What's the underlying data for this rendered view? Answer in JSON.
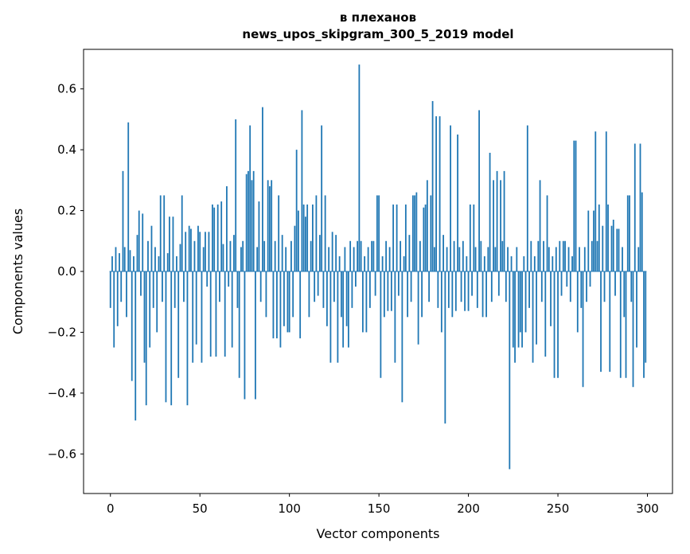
{
  "chart_data": {
    "type": "bar",
    "title_lines": [
      "в плеханов",
      "news_upos_skipgram_300_5_2019 model"
    ],
    "xlabel": "Vector components",
    "ylabel": "Components values",
    "xlim": [
      -15,
      314
    ],
    "ylim": [
      -0.73,
      0.73
    ],
    "grid": false,
    "legend": "none",
    "bar_color": "#1f77b4",
    "x_ticks": [
      0,
      50,
      100,
      150,
      200,
      250,
      300
    ],
    "x_tick_labels": [
      "0",
      "50",
      "100",
      "150",
      "200",
      "250",
      "300"
    ],
    "y_ticks": [
      -0.6,
      -0.4,
      -0.2,
      0.0,
      0.2,
      0.4,
      0.6
    ],
    "y_tick_labels": [
      "−0.6",
      "−0.4",
      "−0.2",
      "0.0",
      "0.2",
      "0.4",
      "0.6"
    ],
    "values": [
      -0.12,
      0.05,
      -0.25,
      0.08,
      -0.18,
      0.06,
      -0.1,
      0.33,
      0.08,
      -0.15,
      0.49,
      0.07,
      -0.36,
      0.05,
      -0.49,
      0.12,
      0.2,
      -0.08,
      0.19,
      -0.3,
      -0.44,
      0.1,
      -0.25,
      0.15,
      -0.12,
      0.08,
      -0.2,
      0.05,
      0.25,
      -0.1,
      0.25,
      -0.43,
      0.06,
      0.18,
      -0.44,
      0.18,
      -0.12,
      0.05,
      -0.35,
      0.09,
      0.25,
      -0.1,
      0.13,
      -0.44,
      0.15,
      0.14,
      -0.3,
      0.1,
      -0.24,
      0.15,
      0.13,
      -0.3,
      0.08,
      0.13,
      -0.05,
      0.13,
      -0.28,
      0.22,
      0.21,
      -0.28,
      0.22,
      -0.1,
      0.23,
      0.09,
      -0.28,
      0.28,
      -0.05,
      0.1,
      -0.25,
      0.12,
      0.5,
      -0.12,
      -0.35,
      0.08,
      0.1,
      -0.42,
      0.32,
      0.33,
      0.48,
      0.3,
      0.33,
      -0.42,
      0.08,
      0.23,
      -0.1,
      0.54,
      0.1,
      -0.15,
      0.3,
      0.28,
      0.3,
      -0.22,
      0.1,
      -0.22,
      0.25,
      -0.25,
      0.12,
      -0.18,
      0.08,
      -0.2,
      -0.2,
      0.1,
      -0.15,
      0.15,
      0.4,
      0.2,
      -0.22,
      0.53,
      0.22,
      0.18,
      0.22,
      -0.15,
      0.1,
      0.22,
      -0.1,
      0.25,
      -0.08,
      0.12,
      0.48,
      -0.12,
      0.25,
      -0.18,
      0.08,
      -0.3,
      0.13,
      -0.1,
      0.12,
      -0.3,
      0.05,
      -0.15,
      -0.25,
      0.08,
      -0.18,
      -0.25,
      0.1,
      -0.12,
      0.08,
      -0.05,
      0.1,
      0.68,
      0.1,
      -0.2,
      0.05,
      -0.2,
      0.08,
      -0.12,
      0.1,
      0.1,
      -0.08,
      0.25,
      0.25,
      -0.35,
      0.05,
      -0.15,
      0.1,
      -0.13,
      0.08,
      -0.13,
      0.22,
      -0.3,
      0.22,
      -0.08,
      0.1,
      -0.43,
      0.05,
      0.22,
      -0.15,
      0.12,
      -0.1,
      0.25,
      0.25,
      0.26,
      -0.24,
      0.1,
      -0.15,
      0.21,
      0.22,
      0.3,
      -0.1,
      0.25,
      0.56,
      0.08,
      0.51,
      -0.12,
      0.51,
      -0.2,
      0.12,
      -0.5,
      0.08,
      -0.12,
      0.48,
      -0.15,
      0.1,
      -0.13,
      0.45,
      0.08,
      -0.1,
      0.1,
      -0.13,
      0.05,
      -0.13,
      0.22,
      -0.08,
      0.22,
      0.08,
      -0.12,
      0.53,
      0.1,
      -0.15,
      0.05,
      -0.15,
      0.08,
      0.39,
      -0.1,
      0.3,
      0.08,
      0.33,
      -0.08,
      0.3,
      0.1,
      0.33,
      -0.1,
      0.08,
      -0.65,
      0.05,
      -0.25,
      -0.3,
      0.08,
      -0.25,
      -0.2,
      -0.25,
      0.05,
      -0.2,
      0.48,
      -0.12,
      0.1,
      -0.3,
      0.05,
      -0.24,
      0.1,
      0.3,
      -0.1,
      0.1,
      -0.28,
      0.25,
      0.08,
      -0.18,
      0.05,
      -0.35,
      0.08,
      -0.35,
      0.1,
      -0.08,
      0.1,
      0.1,
      -0.05,
      0.08,
      -0.1,
      0.05,
      0.43,
      0.43,
      -0.2,
      0.08,
      -0.12,
      -0.38,
      0.08,
      -0.1,
      0.2,
      -0.05,
      0.1,
      0.2,
      0.46,
      0.1,
      0.22,
      -0.33,
      0.15,
      -0.1,
      0.46,
      0.22,
      -0.33,
      0.15,
      0.17,
      -0.08,
      0.14,
      0.14,
      -0.35,
      0.08,
      -0.15,
      -0.35,
      0.25,
      0.25,
      -0.1,
      -0.38,
      0.42,
      -0.25,
      0.08,
      0.42,
      0.26,
      -0.35,
      -0.3
    ]
  }
}
